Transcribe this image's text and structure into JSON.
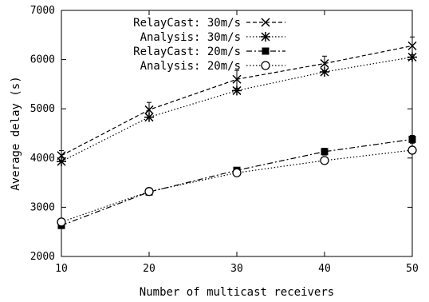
{
  "chart_data": {
    "type": "line",
    "title": "",
    "xlabel": "Number of multicast receivers",
    "ylabel": "Average delay (s)",
    "xlim": [
      10,
      50
    ],
    "ylim": [
      2000,
      7000
    ],
    "x": [
      10,
      20,
      30,
      40,
      50
    ],
    "xticks": [
      "10",
      "20",
      "30",
      "40",
      "50"
    ],
    "yticks": [
      "2000",
      "3000",
      "4000",
      "5000",
      "6000",
      "7000"
    ],
    "legend_position": "top-left",
    "grid": false,
    "series": [
      {
        "name": "RelayCast: 30m/s",
        "marker": "x",
        "dash": "dashed",
        "values": [
          4050,
          4980,
          5600,
          5920,
          6280
        ],
        "errors": [
          100,
          150,
          180,
          150,
          180
        ]
      },
      {
        "name": "Analysis: 30m/s",
        "marker": "star",
        "dash": "dotted",
        "values": [
          3930,
          4830,
          5370,
          5750,
          6050
        ]
      },
      {
        "name": "RelayCast: 20m/s",
        "marker": "filled-square",
        "dash": "dashdot",
        "values": [
          2630,
          3310,
          3750,
          4130,
          4380
        ],
        "errors": [
          40,
          40,
          50,
          70,
          80
        ]
      },
      {
        "name": "Analysis: 20m/s",
        "marker": "open-circle",
        "dash": "dotted",
        "values": [
          2700,
          3320,
          3700,
          3950,
          4160
        ]
      }
    ]
  }
}
